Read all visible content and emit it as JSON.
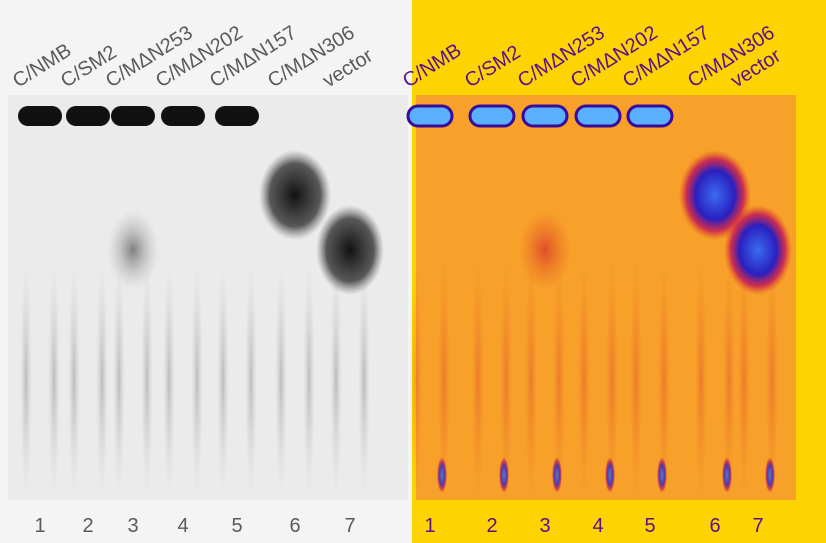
{
  "panels": [
    {
      "lanes": [
        {
          "label": "C/NMB",
          "number": "1"
        },
        {
          "label": "C/SM2",
          "number": "2"
        },
        {
          "label": "C/MΔN253",
          "number": "3"
        },
        {
          "label": "C/MΔN202",
          "number": "4"
        },
        {
          "label": "C/MΔN157",
          "number": "5"
        },
        {
          "label": "C/MΔN306",
          "number": "6"
        },
        {
          "label": "vector",
          "number": "7"
        }
      ]
    },
    {
      "lanes": [
        {
          "label": "C/NMB",
          "number": "1"
        },
        {
          "label": "C/SM2",
          "number": "2"
        },
        {
          "label": "C/MΔN253",
          "number": "3"
        },
        {
          "label": "C/MΔN202",
          "number": "4"
        },
        {
          "label": "C/MΔN157",
          "number": "5"
        },
        {
          "label": "C/MΔN306",
          "number": "6"
        },
        {
          "label": "vector",
          "number": "7"
        }
      ]
    }
  ]
}
